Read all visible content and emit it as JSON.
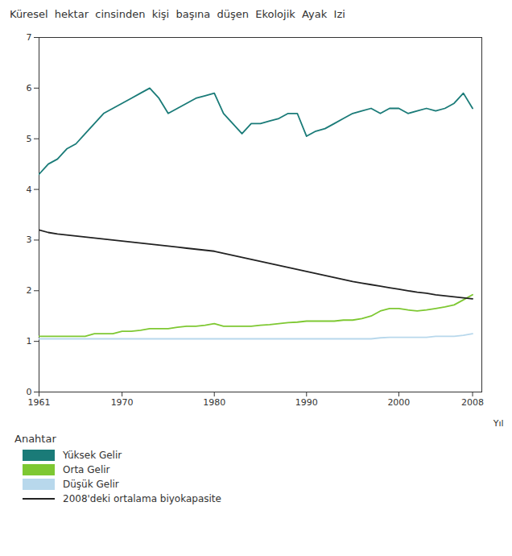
{
  "chart_data": {
    "type": "line",
    "title": "Küresel  hektar  cinsinden  kişi  başına  düşen  Ekolojik  Ayak  Izi",
    "xlabel": "Yıl",
    "legend_title": "Anahtar",
    "xlim": [
      1961,
      2009
    ],
    "xticks": [
      1961,
      1970,
      1980,
      1990,
      2000,
      2008
    ],
    "ylim": [
      0,
      7
    ],
    "yticks": [
      0,
      1,
      2,
      3,
      4,
      5,
      6,
      7
    ],
    "grid": false,
    "x": [
      1961,
      1962,
      1963,
      1964,
      1965,
      1966,
      1967,
      1968,
      1969,
      1970,
      1971,
      1972,
      1973,
      1974,
      1975,
      1976,
      1977,
      1978,
      1979,
      1980,
      1981,
      1982,
      1983,
      1984,
      1985,
      1986,
      1987,
      1988,
      1989,
      1990,
      1991,
      1992,
      1993,
      1994,
      1995,
      1996,
      1997,
      1998,
      1999,
      2000,
      2001,
      2002,
      2003,
      2004,
      2005,
      2006,
      2007,
      2008
    ],
    "series": [
      {
        "name": "Yüksek Gelir",
        "color": "#1a7b78",
        "values": [
          4.3,
          4.5,
          4.6,
          4.8,
          4.9,
          5.1,
          5.3,
          5.5,
          5.6,
          5.7,
          5.8,
          5.9,
          6.0,
          5.8,
          5.5,
          5.6,
          5.7,
          5.8,
          5.85,
          5.9,
          5.5,
          5.3,
          5.1,
          5.3,
          5.3,
          5.35,
          5.4,
          5.5,
          5.5,
          5.05,
          5.15,
          5.2,
          5.3,
          5.4,
          5.5,
          5.55,
          5.6,
          5.5,
          5.6,
          5.6,
          5.5,
          5.55,
          5.6,
          5.55,
          5.6,
          5.7,
          5.9,
          5.6
        ]
      },
      {
        "name": "Orta Gelir",
        "color": "#7ec832",
        "values": [
          1.1,
          1.1,
          1.1,
          1.1,
          1.1,
          1.1,
          1.15,
          1.15,
          1.15,
          1.2,
          1.2,
          1.22,
          1.25,
          1.25,
          1.25,
          1.28,
          1.3,
          1.3,
          1.32,
          1.35,
          1.3,
          1.3,
          1.3,
          1.3,
          1.32,
          1.33,
          1.35,
          1.37,
          1.38,
          1.4,
          1.4,
          1.4,
          1.4,
          1.42,
          1.42,
          1.45,
          1.5,
          1.6,
          1.65,
          1.65,
          1.62,
          1.6,
          1.62,
          1.65,
          1.68,
          1.72,
          1.82,
          1.92
        ]
      },
      {
        "name": "Düşük Gelir",
        "color": "#b8d8ec",
        "values": [
          1.05,
          1.05,
          1.05,
          1.05,
          1.05,
          1.05,
          1.05,
          1.05,
          1.05,
          1.05,
          1.05,
          1.05,
          1.05,
          1.05,
          1.05,
          1.05,
          1.05,
          1.05,
          1.05,
          1.05,
          1.05,
          1.05,
          1.05,
          1.05,
          1.05,
          1.05,
          1.05,
          1.05,
          1.05,
          1.05,
          1.05,
          1.05,
          1.05,
          1.05,
          1.05,
          1.05,
          1.05,
          1.07,
          1.08,
          1.08,
          1.08,
          1.08,
          1.08,
          1.1,
          1.1,
          1.1,
          1.12,
          1.15
        ]
      },
      {
        "name": "2008'deki ortalama biyokapasite",
        "color": "#222222",
        "values": [
          3.2,
          3.15,
          3.12,
          3.1,
          3.08,
          3.06,
          3.04,
          3.02,
          3.0,
          2.98,
          2.96,
          2.94,
          2.92,
          2.9,
          2.88,
          2.86,
          2.84,
          2.82,
          2.8,
          2.78,
          2.74,
          2.7,
          2.66,
          2.62,
          2.58,
          2.54,
          2.5,
          2.46,
          2.42,
          2.38,
          2.34,
          2.3,
          2.26,
          2.22,
          2.18,
          2.15,
          2.12,
          2.09,
          2.06,
          2.03,
          2.0,
          1.97,
          1.95,
          1.92,
          1.9,
          1.88,
          1.86,
          1.84
        ]
      }
    ]
  }
}
